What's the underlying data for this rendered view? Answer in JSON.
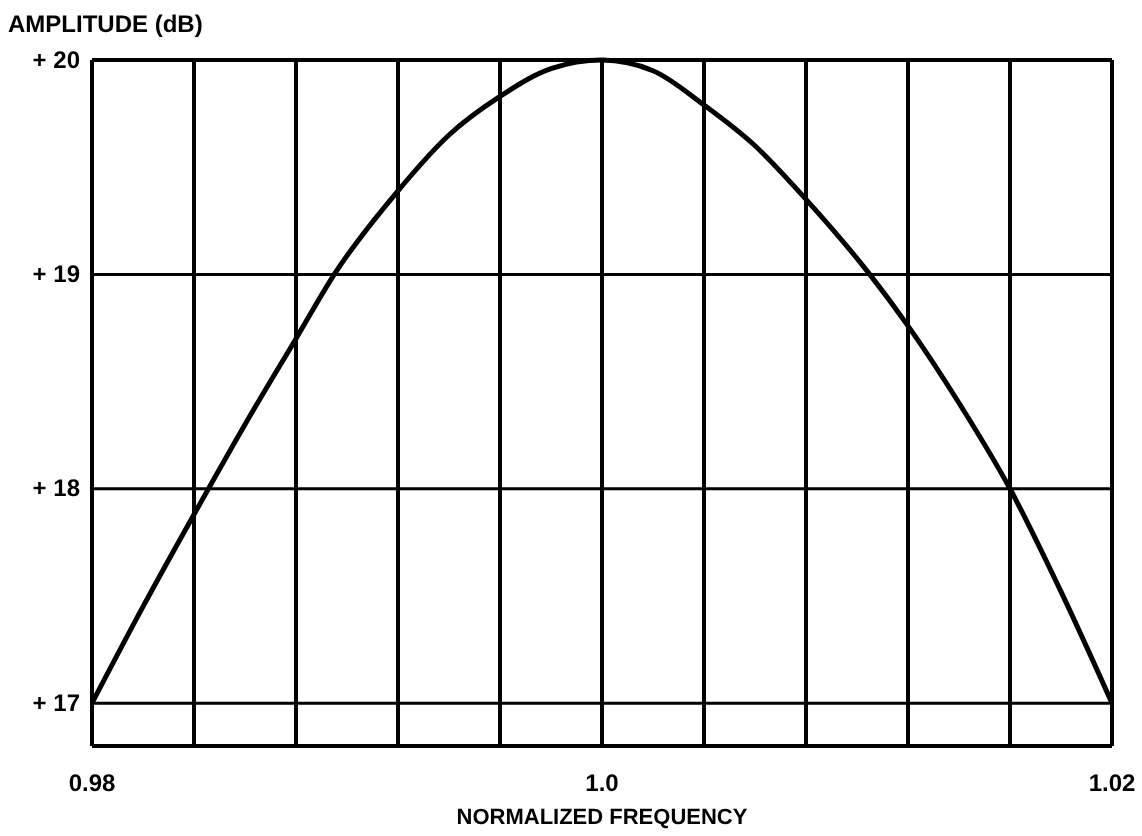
{
  "chart_data": {
    "type": "line",
    "ylabel": "AMPLITUDE (dB)",
    "xlabel": "NORMALIZED FREQUENCY",
    "x": [
      0.98,
      0.982,
      0.984,
      0.986,
      0.988,
      0.9895,
      0.992,
      0.994,
      0.996,
      0.998,
      1.0,
      1.002,
      1.004,
      1.006,
      1.008,
      1.0105,
      1.012,
      1.014,
      1.016,
      1.018,
      1.02
    ],
    "series": [
      {
        "color": "#000000",
        "values": [
          17,
          17.45,
          17.88,
          18.3,
          18.7,
          19,
          19.39,
          19.65,
          19.83,
          19.96,
          20,
          19.95,
          19.79,
          19.6,
          19.35,
          19,
          18.76,
          18.4,
          18.0,
          17.52,
          17
        ]
      }
    ],
    "xlim": [
      0.98,
      1.02
    ],
    "xticks": [
      0.98,
      {
        "value": 0.984,
        "label": null
      },
      {
        "value": 0.988,
        "label": null
      },
      {
        "value": 0.992,
        "label": null
      },
      {
        "value": 0.996,
        "label": null
      },
      {
        "value": 1.0,
        "label": "1.0"
      },
      {
        "value": 1.004,
        "label": null
      },
      {
        "value": 1.008,
        "label": null
      },
      {
        "value": 1.012,
        "label": null
      },
      {
        "value": 1.016,
        "label": null
      },
      1.02
    ],
    "ylim": [
      16.8,
      20
    ],
    "yticks": [
      {
        "value": 17,
        "label": "+ 17"
      },
      {
        "value": 18,
        "label": "+ 18"
      },
      {
        "value": 19,
        "label": "+ 19"
      },
      {
        "value": 20,
        "label": "+ 20"
      }
    ],
    "grid": true,
    "marker": "none",
    "line_style": "solid"
  }
}
